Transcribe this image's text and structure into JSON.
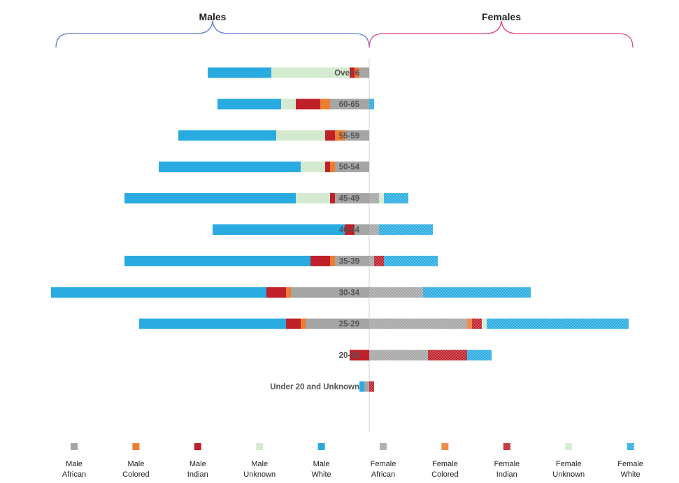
{
  "chart_data": {
    "type": "bar",
    "orientation": "horizontal",
    "layout": "population-pyramid",
    "group_labels": {
      "left": "Males",
      "right": "Females"
    },
    "categories": [
      "Over 6",
      "60-65",
      "55-59",
      "50-54",
      "45-49",
      "40-44",
      "35-39",
      "30-34",
      "25-29",
      "20-24",
      "Under 20 and Unknown"
    ],
    "male_series": [
      {
        "name": "Male African",
        "color": "#a5a5a5",
        "pattern": "solid",
        "values": [
          2,
          8,
          5,
          7,
          7,
          3,
          7,
          16,
          13,
          0,
          1
        ]
      },
      {
        "name": "Male Colored",
        "color": "#ed7d31",
        "pattern": "solid",
        "values": [
          1,
          2,
          2,
          1,
          0,
          0,
          1,
          1,
          1,
          0,
          0
        ]
      },
      {
        "name": "Male Indian",
        "color": "#c0202a",
        "pattern": "solid",
        "values": [
          1,
          5,
          2,
          1,
          1,
          2,
          4,
          4,
          3,
          4,
          0
        ]
      },
      {
        "name": "Male Unknown",
        "color": "#d4ead0",
        "pattern": "solid",
        "values": [
          16,
          3,
          10,
          5,
          7,
          0,
          0,
          0,
          0,
          0,
          0
        ]
      },
      {
        "name": "Male White",
        "color": "#29abe2",
        "pattern": "solid",
        "values": [
          13,
          13,
          20,
          29,
          35,
          27,
          38,
          44,
          30,
          0,
          1
        ]
      }
    ],
    "female_series": [
      {
        "name": "Female African",
        "color": "#a5a5a5",
        "pattern": "dotted",
        "values": [
          0,
          0,
          0,
          0,
          2,
          2,
          1,
          11,
          20,
          12,
          0
        ]
      },
      {
        "name": "Female Colored",
        "color": "#ed7d31",
        "pattern": "dotted",
        "values": [
          0,
          0,
          0,
          0,
          0,
          0,
          0,
          0,
          1,
          0,
          0
        ]
      },
      {
        "name": "Female Indian",
        "color": "#c0202a",
        "pattern": "dotted",
        "values": [
          0,
          0,
          0,
          0,
          0,
          0,
          2,
          0,
          2,
          8,
          1
        ]
      },
      {
        "name": "Female Unknown",
        "color": "#d4ead0",
        "pattern": "dotted",
        "values": [
          0,
          0,
          0,
          0,
          1,
          0,
          0,
          0,
          1,
          0,
          0
        ]
      },
      {
        "name": "Female White",
        "color": "#29abe2",
        "pattern": "dotted",
        "values": [
          0,
          1,
          0,
          0,
          5,
          11,
          11,
          22,
          29,
          5,
          0
        ]
      }
    ],
    "legend": [
      {
        "line1": "Male",
        "line2": "African",
        "color": "#a5a5a5",
        "pattern": "solid"
      },
      {
        "line1": "Male",
        "line2": "Colored",
        "color": "#ed7d31",
        "pattern": "solid"
      },
      {
        "line1": "Male",
        "line2": "Indian",
        "color": "#c0202a",
        "pattern": "solid"
      },
      {
        "line1": "Male",
        "line2": "Unknown",
        "color": "#d4ead0",
        "pattern": "solid"
      },
      {
        "line1": "Male",
        "line2": "White",
        "color": "#29abe2",
        "pattern": "solid"
      },
      {
        "line1": "Female",
        "line2": "African",
        "color": "#a5a5a5",
        "pattern": "dotted"
      },
      {
        "line1": "Female",
        "line2": "Colored",
        "color": "#ed7d31",
        "pattern": "dotted"
      },
      {
        "line1": "Female",
        "line2": "Indian",
        "color": "#c0202a",
        "pattern": "dotted"
      },
      {
        "line1": "Female",
        "line2": "Unknown",
        "color": "#d4ead0",
        "pattern": "dotted"
      },
      {
        "line1": "Female",
        "line2": "White",
        "color": "#29abe2",
        "pattern": "dotted"
      }
    ],
    "legend_position": "bottom",
    "brace_colors": {
      "left": "#5b7fd6",
      "right": "#e0457b"
    },
    "gridlines": false
  }
}
